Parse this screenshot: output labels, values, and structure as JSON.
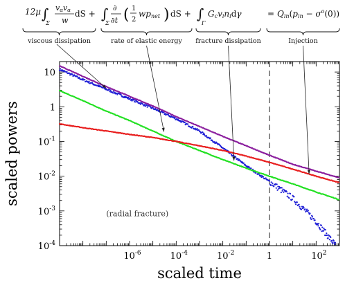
{
  "chart_data": {
    "type": "scatter",
    "xlabel": "scaled time",
    "ylabel": "scaled powers",
    "xscale": "log",
    "yscale": "log",
    "xlim": [
      1e-09,
      1000
    ],
    "ylim": [
      0.0001,
      20
    ],
    "x_ticks": [
      {
        "value": 1e-06,
        "base": "10",
        "exp": "-6"
      },
      {
        "value": 0.0001,
        "base": "10",
        "exp": "-4"
      },
      {
        "value": 0.01,
        "base": "10",
        "exp": "-2"
      },
      {
        "value": 1,
        "base": "1",
        "exp": ""
      },
      {
        "value": 100.0,
        "base": "10",
        "exp": "2"
      }
    ],
    "y_ticks": [
      {
        "value": 10,
        "base": "10",
        "exp": ""
      },
      {
        "value": 1,
        "base": "1",
        "exp": ""
      },
      {
        "value": 0.1,
        "base": "10",
        "exp": "-1"
      },
      {
        "value": 0.01,
        "base": "10",
        "exp": "-2"
      },
      {
        "value": 0.001,
        "base": "10",
        "exp": "-3"
      },
      {
        "value": 0.0001,
        "base": "10",
        "exp": "-4"
      }
    ],
    "vline_x": 1,
    "inner_annotation": "(radial fracture)",
    "series": [
      {
        "key": "viscous",
        "color": "#1f1fd6",
        "points": [
          [
            1e-09,
            12
          ],
          [
            1e-08,
            6
          ],
          [
            1e-07,
            3.2
          ],
          [
            1e-06,
            1.7
          ],
          [
            1e-05,
            0.9
          ],
          [
            0.0001,
            0.45
          ],
          [
            0.001,
            0.2
          ],
          [
            0.01,
            0.065
          ],
          [
            0.1,
            0.02
          ],
          [
            1,
            0.007
          ],
          [
            10,
            0.0023
          ],
          [
            100,
            0.0005
          ],
          [
            700,
            0.0001
          ]
        ]
      },
      {
        "key": "elastic",
        "color": "#22e022",
        "points": [
          [
            1e-09,
            2.9
          ],
          [
            1e-08,
            1.5
          ],
          [
            1e-07,
            0.75
          ],
          [
            1e-06,
            0.4
          ],
          [
            1e-05,
            0.2
          ],
          [
            0.0001,
            0.1
          ],
          [
            0.001,
            0.055
          ],
          [
            0.01,
            0.03
          ],
          [
            0.1,
            0.017
          ],
          [
            1,
            0.01
          ],
          [
            10,
            0.006
          ],
          [
            100,
            0.0035
          ],
          [
            1000,
            0.0021
          ]
        ]
      },
      {
        "key": "fracture",
        "color": "#e81f1f",
        "points": [
          [
            1e-09,
            0.32
          ],
          [
            1e-08,
            0.25
          ],
          [
            1e-07,
            0.2
          ],
          [
            1e-06,
            0.16
          ],
          [
            1e-05,
            0.13
          ],
          [
            0.0001,
            0.1
          ],
          [
            0.001,
            0.075
          ],
          [
            0.01,
            0.055
          ],
          [
            0.1,
            0.038
          ],
          [
            1,
            0.025
          ],
          [
            10,
            0.016
          ],
          [
            100,
            0.01
          ],
          [
            1000,
            0.0065
          ]
        ]
      },
      {
        "key": "injection",
        "color": "#8b1f9e",
        "points": [
          [
            1e-09,
            15
          ],
          [
            1e-08,
            7.5
          ],
          [
            1e-07,
            3.8
          ],
          [
            1e-06,
            2
          ],
          [
            1e-05,
            1.05
          ],
          [
            0.0001,
            0.52
          ],
          [
            0.001,
            0.27
          ],
          [
            0.01,
            0.14
          ],
          [
            0.1,
            0.075
          ],
          [
            1,
            0.04
          ],
          [
            10,
            0.022
          ],
          [
            100,
            0.014
          ],
          [
            1000,
            0.009
          ]
        ]
      }
    ],
    "equation_terms": [
      {
        "key": "viscous",
        "caption": "viscous dissipation",
        "arrow_to": [
          1e-07,
          3.4
        ]
      },
      {
        "key": "elastic",
        "caption": "rate of elastic energy",
        "arrow_to": [
          3e-05,
          0.19
        ]
      },
      {
        "key": "fracture",
        "caption": "fracture dissipation",
        "arrow_to": [
          0.03,
          0.028
        ]
      },
      {
        "key": "injection",
        "caption": "Injection",
        "arrow_to": [
          50,
          0.0115
        ]
      }
    ]
  }
}
